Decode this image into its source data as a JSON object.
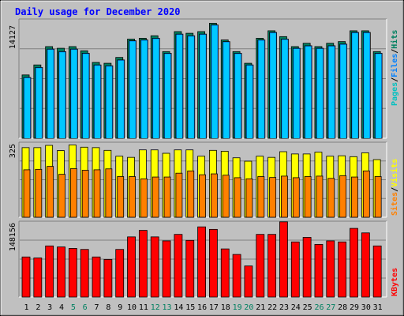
{
  "title": "Daily usage for December 2020",
  "colors": {
    "background": "#c0c0c0",
    "title": "#0000ff",
    "pages": "#00c0c0",
    "files": "#0080ff",
    "hits": "#008060",
    "sites": "#ff8000",
    "visits": "#ffff00",
    "kbytes": "#ff0000",
    "grid": "#808080",
    "weekend_label": "#008060",
    "weekday_label": "#000000"
  },
  "chart_data": [
    {
      "type": "bar",
      "panel": "hits-files-pages",
      "ylabel_max": "14127",
      "ymax": 14127,
      "legend": [
        "Pages",
        "/",
        "Files",
        "/",
        "Hits"
      ],
      "categories": [
        "1",
        "2",
        "3",
        "4",
        "5",
        "6",
        "7",
        "8",
        "9",
        "10",
        "11",
        "12",
        "13",
        "14",
        "15",
        "16",
        "17",
        "18",
        "19",
        "20",
        "21",
        "22",
        "23",
        "24",
        "25",
        "26",
        "27",
        "28",
        "29",
        "30",
        "31"
      ],
      "weekend_days": [
        5,
        6,
        12,
        13,
        19,
        20,
        26,
        27
      ],
      "series": [
        {
          "name": "Hits",
          "values": [
            7600,
            8800,
            11000,
            10800,
            11000,
            10500,
            9100,
            9000,
            9700,
            11900,
            12000,
            12300,
            10400,
            12800,
            12600,
            12800,
            13800,
            11800,
            10400,
            9000,
            12000,
            12900,
            12200,
            11000,
            11400,
            11000,
            11400,
            11600,
            12900,
            12900,
            10400
          ]
        },
        {
          "name": "Files",
          "values": [
            7300,
            8500,
            10700,
            10400,
            10700,
            10200,
            8800,
            8700,
            9400,
            11700,
            11800,
            12000,
            10200,
            12500,
            12300,
            12500,
            13600,
            11600,
            10200,
            8800,
            11800,
            12700,
            11900,
            10800,
            11100,
            10800,
            11100,
            11300,
            12700,
            12700,
            10200
          ]
        }
      ]
    },
    {
      "type": "bar",
      "panel": "visits-sites",
      "ylabel_max": "325",
      "ymax": 325,
      "legend": [
        "Sites",
        "/",
        "Visits"
      ],
      "categories": [
        "1",
        "2",
        "3",
        "4",
        "5",
        "6",
        "7",
        "8",
        "9",
        "10",
        "11",
        "12",
        "13",
        "14",
        "15",
        "16",
        "17",
        "18",
        "19",
        "20",
        "21",
        "22",
        "23",
        "24",
        "25",
        "26",
        "27",
        "28",
        "29",
        "30",
        "31"
      ],
      "series": [
        {
          "name": "Visits",
          "values": [
            308,
            308,
            318,
            295,
            320,
            310,
            308,
            296,
            270,
            265,
            298,
            298,
            283,
            298,
            298,
            270,
            296,
            292,
            263,
            248,
            270,
            265,
            290,
            280,
            280,
            288,
            270,
            272,
            268,
            285,
            255
          ]
        },
        {
          "name": "Sites",
          "values": [
            210,
            212,
            225,
            190,
            215,
            208,
            210,
            214,
            180,
            180,
            170,
            178,
            178,
            195,
            205,
            188,
            192,
            186,
            175,
            170,
            180,
            176,
            182,
            175,
            180,
            182,
            172,
            184,
            178,
            205,
            180
          ]
        }
      ]
    },
    {
      "type": "bar",
      "panel": "kbytes",
      "ylabel_max": "148156",
      "ymax": 148156,
      "legend": [
        "KBytes"
      ],
      "categories": [
        "1",
        "2",
        "3",
        "4",
        "5",
        "6",
        "7",
        "8",
        "9",
        "10",
        "11",
        "12",
        "13",
        "14",
        "15",
        "16",
        "17",
        "18",
        "19",
        "20",
        "21",
        "22",
        "23",
        "24",
        "25",
        "26",
        "27",
        "28",
        "29",
        "30",
        "31"
      ],
      "series": [
        {
          "name": "KBytes",
          "values": [
            80000,
            78000,
            102000,
            100000,
            97000,
            95000,
            80000,
            75000,
            95000,
            120000,
            133000,
            120000,
            112000,
            125000,
            113000,
            140000,
            135000,
            96000,
            85000,
            62000,
            125000,
            125000,
            150000,
            110000,
            119000,
            105000,
            112000,
            110000,
            137000,
            128000,
            102000
          ]
        }
      ]
    }
  ]
}
